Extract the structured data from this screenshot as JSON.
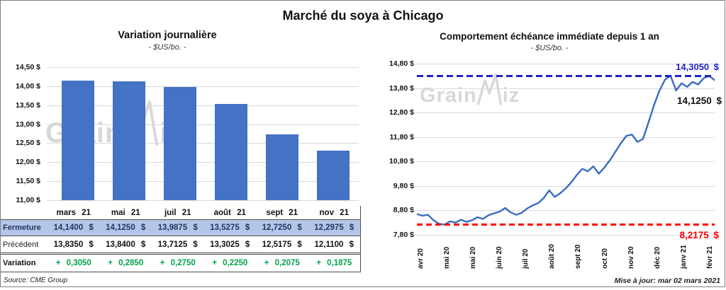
{
  "page": {
    "title": "Marché du soya à Chicago",
    "source": "Source: CME Group",
    "updated": "Mise à jour: mar 02 mars 2021"
  },
  "colors": {
    "bar_blue": "#4472C4",
    "line_blue": "#3A6CC0",
    "max_blue": "#2121CC",
    "min_red": "#FF0000",
    "green": "#00A24A",
    "navy": "#1F3864",
    "highlight_bg": "#B4C6E7",
    "grid": "#D9D9D9",
    "watermark": "#D8D8D8"
  },
  "watermark": {
    "left_text": "Grain",
    "right_text": "iz",
    "icon": "zigzag-line-icon"
  },
  "chart_data": [
    {
      "type": "bar",
      "title": "Variation  journalière",
      "subtitle": "- $US/bo. -",
      "categories": [
        "mars 21",
        "mai 21",
        "juil 21",
        "août 21",
        "sept 21",
        "nov 21"
      ],
      "values": [
        14.14,
        14.125,
        13.9875,
        13.5275,
        12.725,
        12.2975
      ],
      "ylim": [
        11.0,
        14.5
      ],
      "ytick_labels": [
        "14,50 $",
        "14,00 $",
        "13,50 $",
        "13,00 $",
        "12,50 $",
        "12,00 $",
        "11,50 $",
        "11,00 $"
      ],
      "grid": "horizontal",
      "bar_color": "#4472C4"
    },
    {
      "type": "line",
      "title": "Comportement  échéance immédiate depuis 1 an",
      "subtitle": "- $US/bo. -",
      "x_labels": [
        "avr 20",
        "mai 20",
        "mai 20",
        "juin 20",
        "juil 20",
        "août 20",
        "sept 20",
        "oct 20",
        "nov 20",
        "déc 20",
        "janv 21",
        "févr 21"
      ],
      "values": [
        8.65,
        8.58,
        8.62,
        8.4,
        8.25,
        8.2175,
        8.35,
        8.3,
        8.42,
        8.33,
        8.4,
        8.52,
        8.45,
        8.6,
        8.68,
        8.75,
        8.9,
        8.72,
        8.62,
        8.7,
        8.88,
        9.0,
        9.1,
        9.3,
        9.62,
        9.35,
        9.5,
        9.7,
        9.95,
        10.25,
        10.5,
        10.4,
        10.6,
        10.3,
        10.55,
        10.85,
        11.2,
        11.55,
        11.85,
        11.9,
        11.6,
        11.72,
        12.4,
        13.1,
        13.7,
        14.15,
        14.305,
        13.7,
        14.0,
        13.85,
        14.05,
        13.95,
        14.2,
        14.3,
        14.125
      ],
      "ylim": [
        7.8,
        14.8
      ],
      "ytick_labels": [
        "14,80 $",
        "13,80 $",
        "12,80 $",
        "11,80 $",
        "10,80 $",
        "9,80 $",
        "8,80 $",
        "7,80 $"
      ],
      "grid": "horizontal",
      "line_color": "#3A6CC0",
      "max_line": {
        "value": 14.305,
        "label": "14,3050 $",
        "color": "#2121CC"
      },
      "min_line": {
        "value": 8.2175,
        "label": "8,2175 $",
        "color": "#FF0000"
      },
      "last_point": {
        "value": 14.125,
        "label": "14,1250 $"
      }
    }
  ],
  "table": {
    "columns": [
      "mars 21",
      "mai 21",
      "juil 21",
      "août 21",
      "sept 21",
      "nov 21"
    ],
    "rows": [
      {
        "label": "Fermeture",
        "style": "fermeture",
        "values": [
          "14,1400 $",
          "14,1250 $",
          "13,9875 $",
          "13,5275 $",
          "12,7250 $",
          "12,2975 $"
        ]
      },
      {
        "label": "Précédent",
        "style": "precedent",
        "values": [
          "13,8350 $",
          "13,8400 $",
          "13,7125 $",
          "13,3025 $",
          "12,5175 $",
          "12,1100 $"
        ]
      },
      {
        "label": "Variation",
        "style": "variation",
        "values": [
          "+ 0,3050",
          "+ 0,2850",
          "+ 0,2750",
          "+ 0,2250",
          "+ 0,2075",
          "+ 0,1875"
        ]
      }
    ]
  }
}
